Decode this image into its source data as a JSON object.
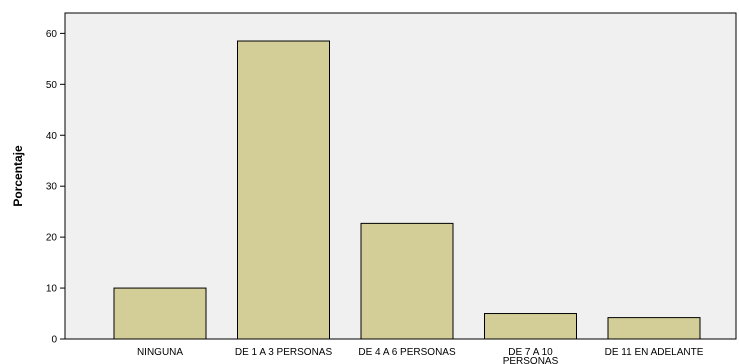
{
  "chart_data": {
    "type": "bar",
    "categories": [
      [
        "NINGUNA"
      ],
      [
        "DE 1 A 3 PERSONAS"
      ],
      [
        "DE 4 A 6 PERSONAS"
      ],
      [
        "DE 7 A 10",
        "PERSONAS"
      ],
      [
        "DE 11 EN ADELANTE"
      ]
    ],
    "values": [
      10,
      58.5,
      22.7,
      5,
      4.2
    ],
    "title": "",
    "xlabel": "",
    "ylabel": "Porcentaje",
    "ylim": [
      0,
      64
    ],
    "yticks": [
      0,
      10,
      20,
      30,
      40,
      50,
      60
    ],
    "grid": false,
    "colors": {
      "bar_fill": "#d3ce97",
      "bar_stroke": "#000000",
      "plot_background": "#f0f0f0",
      "axis": "#000000"
    }
  }
}
